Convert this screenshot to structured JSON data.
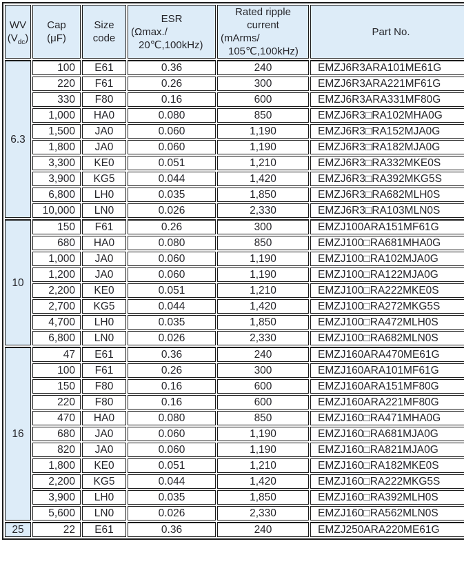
{
  "colors": {
    "header_bg": "#ddecf8",
    "border": "#1b1b1b",
    "text": "#26262b"
  },
  "table": {
    "header": {
      "wv_title": "WV",
      "wv_unit_open": "(V",
      "wv_unit_sub": "dc",
      "wv_unit_close": ")",
      "cap_title": "Cap",
      "cap_unit": "(μF)",
      "size_line1": "Size",
      "size_line2": "code",
      "esr_title": "ESR",
      "esr_cond1": "(Ωmax./",
      "esr_cond2": "20℃,100kHz)",
      "ripple_line1": "Rated ripple",
      "ripple_line2": "current",
      "ripple_cond1": "(mArms/",
      "ripple_cond2": "105℃,100kHz)",
      "part_title": "Part No."
    },
    "groups": [
      {
        "wv": "6.3",
        "rows": [
          [
            "100",
            "E61",
            "0.36",
            "240",
            "EMZJ6R3ARA101ME61G"
          ],
          [
            "220",
            "F61",
            "0.26",
            "300",
            "EMZJ6R3ARA221MF61G"
          ],
          [
            "330",
            "F80",
            "0.16",
            "600",
            "EMZJ6R3ARA331MF80G"
          ],
          [
            "1,000",
            "HA0",
            "0.080",
            "850",
            "EMZJ6R3□RA102MHA0G"
          ],
          [
            "1,500",
            "JA0",
            "0.060",
            "1,190",
            "EMZJ6R3□RA152MJA0G"
          ],
          [
            "1,800",
            "JA0",
            "0.060",
            "1,190",
            "EMZJ6R3□RA182MJA0G"
          ],
          [
            "3,300",
            "KE0",
            "0.051",
            "1,210",
            "EMZJ6R3□RA332MKE0S"
          ],
          [
            "3,900",
            "KG5",
            "0.044",
            "1,420",
            "EMZJ6R3□RA392MKG5S"
          ],
          [
            "6,800",
            "LH0",
            "0.035",
            "1,850",
            "EMZJ6R3□RA682MLH0S"
          ],
          [
            "10,000",
            "LN0",
            "0.026",
            "2,330",
            "EMZJ6R3□RA103MLN0S"
          ]
        ]
      },
      {
        "wv": "10",
        "rows": [
          [
            "150",
            "F61",
            "0.26",
            "300",
            "EMZJ100ARA151MF61G"
          ],
          [
            "680",
            "HA0",
            "0.080",
            "850",
            "EMZJ100□RA681MHA0G"
          ],
          [
            "1,000",
            "JA0",
            "0.060",
            "1,190",
            "EMZJ100□RA102MJA0G"
          ],
          [
            "1,200",
            "JA0",
            "0.060",
            "1,190",
            "EMZJ100□RA122MJA0G"
          ],
          [
            "2,200",
            "KE0",
            "0.051",
            "1,210",
            "EMZJ100□RA222MKE0S"
          ],
          [
            "2,700",
            "KG5",
            "0.044",
            "1,420",
            "EMZJ100□RA272MKG5S"
          ],
          [
            "4,700",
            "LH0",
            "0.035",
            "1,850",
            "EMZJ100□RA472MLH0S"
          ],
          [
            "6,800",
            "LN0",
            "0.026",
            "2,330",
            "EMZJ100□RA682MLN0S"
          ]
        ]
      },
      {
        "wv": "16",
        "rows": [
          [
            "47",
            "E61",
            "0.36",
            "240",
            "EMZJ160ARA470ME61G"
          ],
          [
            "100",
            "F61",
            "0.26",
            "300",
            "EMZJ160ARA101MF61G"
          ],
          [
            "150",
            "F80",
            "0.16",
            "600",
            "EMZJ160ARA151MF80G"
          ],
          [
            "220",
            "F80",
            "0.16",
            "600",
            "EMZJ160ARA221MF80G"
          ],
          [
            "470",
            "HA0",
            "0.080",
            "850",
            "EMZJ160□RA471MHA0G"
          ],
          [
            "680",
            "JA0",
            "0.060",
            "1,190",
            "EMZJ160□RA681MJA0G"
          ],
          [
            "820",
            "JA0",
            "0.060",
            "1,190",
            "EMZJ160□RA821MJA0G"
          ],
          [
            "1,800",
            "KE0",
            "0.051",
            "1,210",
            "EMZJ160□RA182MKE0S"
          ],
          [
            "2,200",
            "KG5",
            "0.044",
            "1,420",
            "EMZJ160□RA222MKG5S"
          ],
          [
            "3,900",
            "LH0",
            "0.035",
            "1,850",
            "EMZJ160□RA392MLH0S"
          ],
          [
            "5,600",
            "LN0",
            "0.026",
            "2,330",
            "EMZJ160□RA562MLN0S"
          ]
        ]
      },
      {
        "wv": "25",
        "rows": [
          [
            "22",
            "E61",
            "0.36",
            "240",
            "EMZJ250ARA220ME61G"
          ]
        ]
      }
    ]
  }
}
